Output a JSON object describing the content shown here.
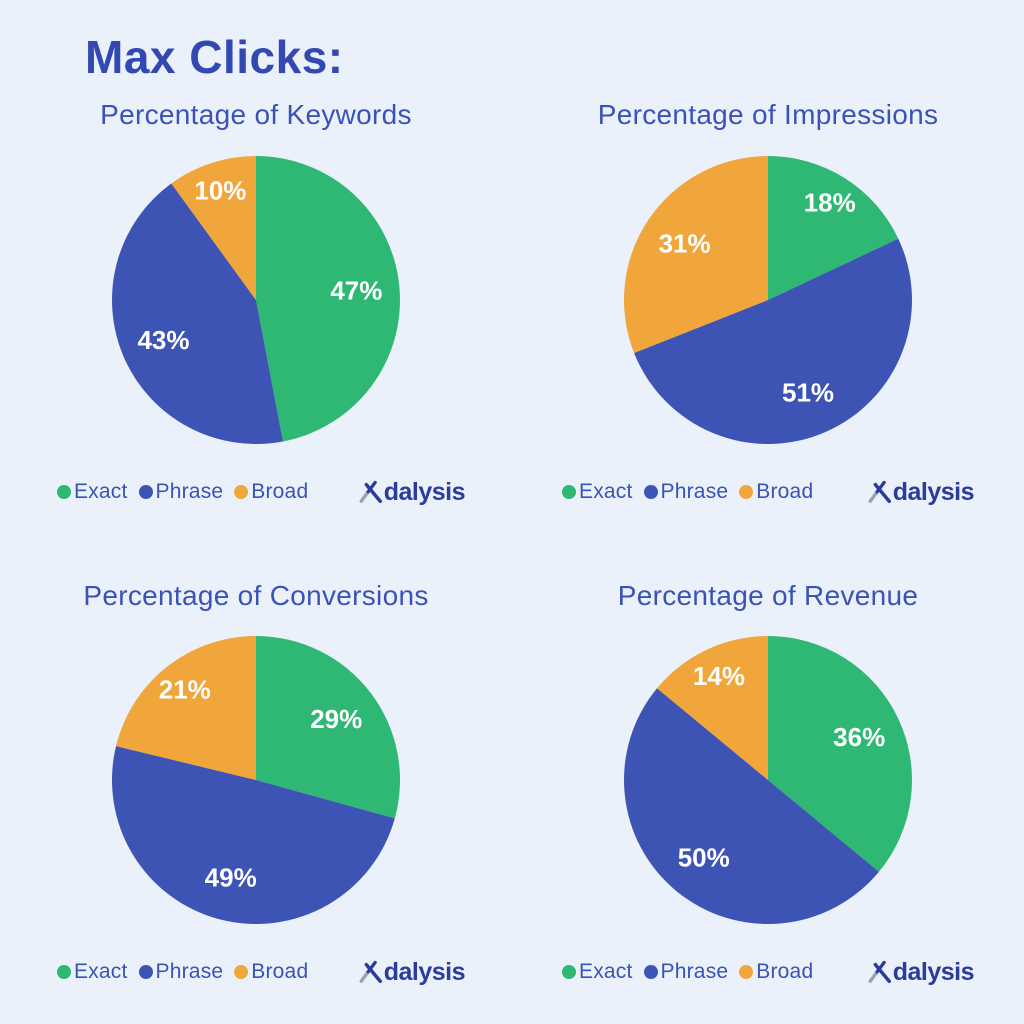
{
  "page_title": "Max Clicks:",
  "brand": {
    "name": "Adalysis",
    "wordmark_suffix": "dalysis"
  },
  "colors": {
    "background": "#EAF1FA",
    "heading": "#3348B1",
    "subtitle": "#3A53B5",
    "legend_text": "#3A53B5",
    "exact": "#2EB873",
    "phrase": "#3D54B5",
    "broad": "#F0A63A",
    "slice_label": "#FFFFFF",
    "logo_blue": "#2B3D9B",
    "logo_gray": "#9CA3AF"
  },
  "legend": {
    "items": [
      {
        "label": "Exact",
        "color_key": "exact"
      },
      {
        "label": "Phrase",
        "color_key": "phrase"
      },
      {
        "label": "Broad",
        "color_key": "broad"
      }
    ]
  },
  "chart_data": [
    {
      "type": "pie",
      "title": "Percentage of Keywords",
      "categories": [
        "Exact",
        "Phrase",
        "Broad"
      ],
      "values": [
        47,
        43,
        10
      ],
      "slice_labels": [
        "47%",
        "43%",
        "10%"
      ],
      "color_keys": [
        "exact",
        "phrase",
        "broad"
      ],
      "start": "12-oclock",
      "direction": "clockwise",
      "legend_position": "bottom-left"
    },
    {
      "type": "pie",
      "title": "Percentage of Impressions",
      "categories": [
        "Exact",
        "Phrase",
        "Broad"
      ],
      "values": [
        18,
        51,
        31
      ],
      "slice_labels": [
        "18%",
        "51%",
        "31%"
      ],
      "color_keys": [
        "exact",
        "phrase",
        "broad"
      ],
      "start": "12-oclock",
      "direction": "clockwise",
      "legend_position": "bottom-left"
    },
    {
      "type": "pie",
      "title": "Percentage of Conversions",
      "categories": [
        "Exact",
        "Phrase",
        "Broad"
      ],
      "values": [
        29,
        49,
        21
      ],
      "slice_labels": [
        "29%",
        "49%",
        "21%"
      ],
      "color_keys": [
        "exact",
        "phrase",
        "broad"
      ],
      "start": "12-oclock",
      "direction": "clockwise",
      "legend_position": "bottom-left"
    },
    {
      "type": "pie",
      "title": "Percentage of Revenue",
      "categories": [
        "Exact",
        "Phrase",
        "Broad"
      ],
      "values": [
        36,
        50,
        14
      ],
      "slice_labels": [
        "36%",
        "50%",
        "14%"
      ],
      "color_keys": [
        "exact",
        "phrase",
        "broad"
      ],
      "start": "12-oclock",
      "direction": "clockwise",
      "legend_position": "bottom-left"
    }
  ]
}
